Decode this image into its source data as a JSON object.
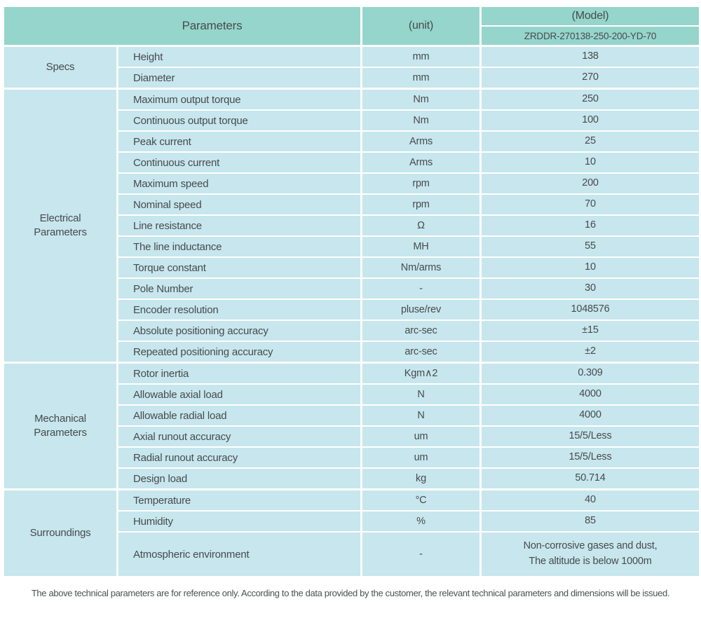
{
  "table": {
    "header": {
      "parameters_label": "Parameters",
      "unit_label": "(unit)",
      "model_label": "(Model)",
      "model_number": "ZRDDR-270138-250-200-YD-70"
    },
    "sections": [
      {
        "label": "Specs",
        "rows": [
          {
            "param": "Height",
            "unit": "mm",
            "value": "138"
          },
          {
            "param": "Diameter",
            "unit": "mm",
            "value": "270"
          }
        ]
      },
      {
        "label": "Electrical\nParameters",
        "rows": [
          {
            "param": "Maximum output torque",
            "unit": "Nm",
            "value": "250"
          },
          {
            "param": "Continuous output torque",
            "unit": "Nm",
            "value": "100"
          },
          {
            "param": "Peak current",
            "unit": "Arms",
            "value": "25"
          },
          {
            "param": "Continuous current",
            "unit": "Arms",
            "value": "10"
          },
          {
            "param": "Maximum speed",
            "unit": "rpm",
            "value": "200"
          },
          {
            "param": "Nominal speed",
            "unit": "rpm",
            "value": "70"
          },
          {
            "param": "Line resistance",
            "unit": "Ω",
            "value": "16"
          },
          {
            "param": "The line inductance",
            "unit": "MH",
            "value": "55"
          },
          {
            "param": "Torque constant",
            "unit": "Nm/arms",
            "value": "10"
          },
          {
            "param": "Pole Number",
            "unit": "-",
            "value": "30"
          },
          {
            "param": "Encoder resolution",
            "unit": "pluse/rev",
            "value": "1048576"
          },
          {
            "param": "Absolute positioning accuracy",
            "unit": "arc-sec",
            "value": "±15"
          },
          {
            "param": "Repeated positioning accuracy",
            "unit": "arc-sec",
            "value": "±2"
          }
        ]
      },
      {
        "label": "Mechanical\nParameters",
        "rows": [
          {
            "param": "Rotor inertia",
            "unit": "Kgm∧2",
            "value": "0.309"
          },
          {
            "param": "Allowable axial load",
            "unit": "N",
            "value": "4000"
          },
          {
            "param": "Allowable radial load",
            "unit": "N",
            "value": "4000"
          },
          {
            "param": "Axial runout accuracy",
            "unit": "um",
            "value": "15/5/Less"
          },
          {
            "param": "Radial runout accuracy",
            "unit": "um",
            "value": "15/5/Less"
          },
          {
            "param": "Design load",
            "unit": "kg",
            "value": "50.714"
          }
        ]
      },
      {
        "label": "Surroundings",
        "rows": [
          {
            "param": "Temperature",
            "unit": "°C",
            "value": "40"
          },
          {
            "param": "Humidity",
            "unit": "%",
            "value": "85"
          },
          {
            "param": "Atmospheric environment",
            "unit": "-",
            "value": "Non-corrosive gases and dust,\nThe altitude is below 1000m"
          }
        ]
      }
    ]
  },
  "footnote": "The above technical parameters are for reference only. According to the data provided by the customer, the relevant technical parameters and dimensions will be issued.",
  "colors": {
    "header_bg": "#95d5cb",
    "row_bg": "#c7e6ed",
    "border": "#ffffff",
    "text": "#474b4e"
  }
}
